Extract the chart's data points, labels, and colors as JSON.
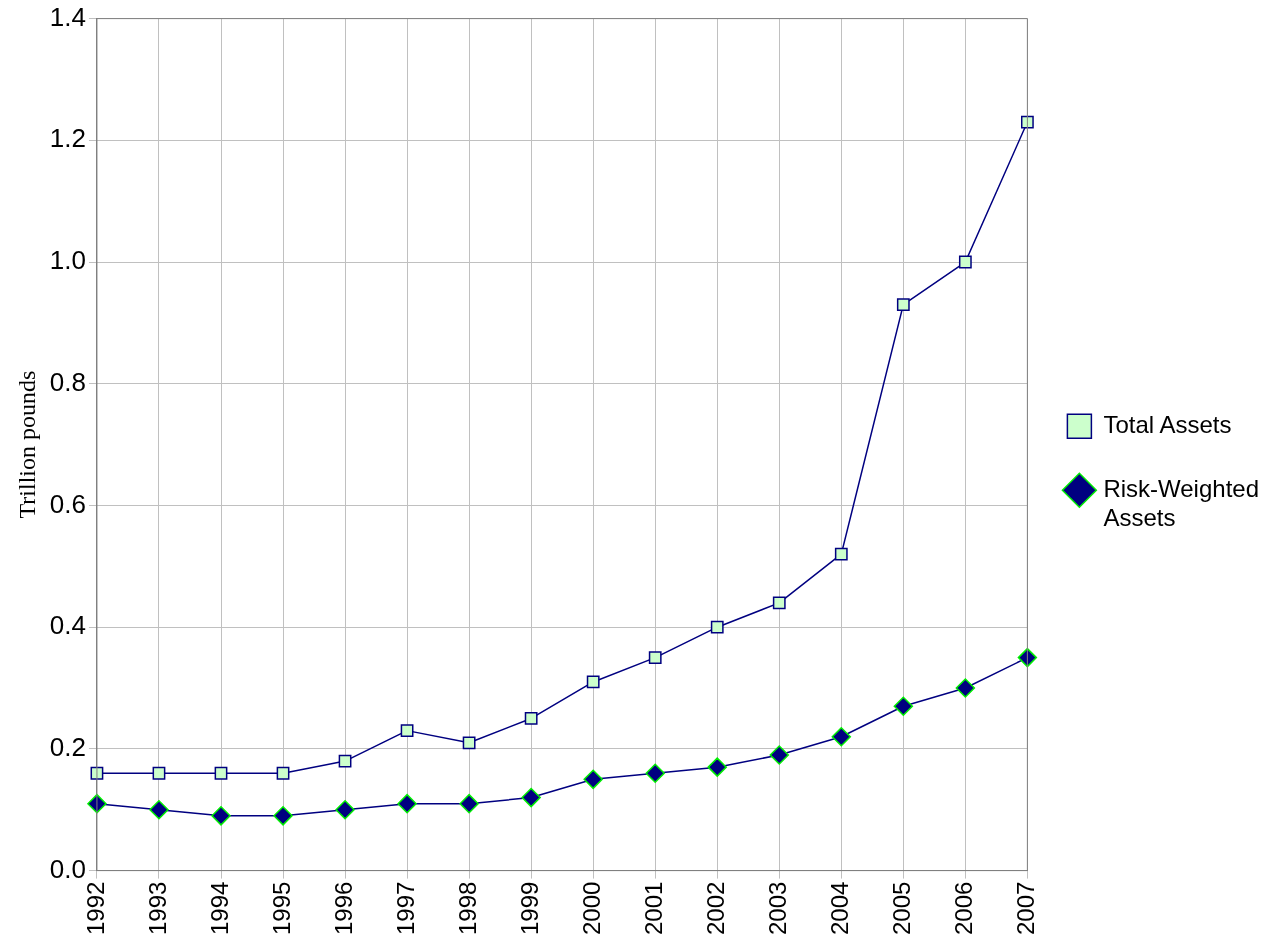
{
  "chart_data": {
    "type": "line",
    "ylabel": "Trillion pounds",
    "categories": [
      "1992",
      "1993",
      "1994",
      "1995",
      "1996",
      "1997",
      "1998",
      "1999",
      "2000",
      "2001",
      "2002",
      "2003",
      "2004",
      "2005",
      "2006",
      "2007"
    ],
    "series": [
      {
        "name": "Total Assets",
        "color": "#000080",
        "marker": "square",
        "values": [
          0.16,
          0.16,
          0.16,
          0.16,
          0.18,
          0.23,
          0.21,
          0.25,
          0.31,
          0.35,
          0.4,
          0.44,
          0.52,
          0.93,
          1.0,
          1.23
        ]
      },
      {
        "name": "Risk-Weighted Assets",
        "color": "#000080",
        "marker": "diamond",
        "values": [
          0.11,
          0.1,
          0.09,
          0.09,
          0.1,
          0.11,
          0.11,
          0.12,
          0.15,
          0.16,
          0.17,
          0.19,
          0.22,
          0.27,
          0.3,
          0.35
        ]
      }
    ],
    "ylim": [
      0,
      1.4
    ],
    "yticks": [
      {
        "value": 0,
        "label": "0.0"
      },
      0.2,
      0.4,
      0.6,
      0.8,
      {
        "value": 1,
        "label": "1.0"
      },
      1.2,
      1.4
    ],
    "grid": true,
    "legend": "right",
    "line_style": "solid"
  }
}
